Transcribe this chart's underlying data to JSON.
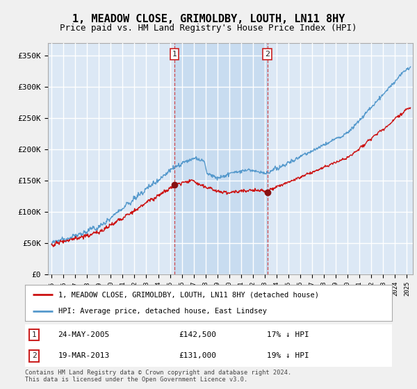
{
  "title": "1, MEADOW CLOSE, GRIMOLDBY, LOUTH, LN11 8HY",
  "subtitle": "Price paid vs. HM Land Registry's House Price Index (HPI)",
  "title_fontsize": 11,
  "subtitle_fontsize": 9,
  "ylim": [
    0,
    370000
  ],
  "yticks": [
    0,
    50000,
    100000,
    150000,
    200000,
    250000,
    300000,
    350000
  ],
  "ytick_labels": [
    "£0",
    "£50K",
    "£100K",
    "£150K",
    "£200K",
    "£250K",
    "£300K",
    "£350K"
  ],
  "xlim_start": 1994.7,
  "xlim_end": 2025.5,
  "xticks": [
    1995,
    1996,
    1997,
    1998,
    1999,
    2000,
    2001,
    2002,
    2003,
    2004,
    2005,
    2006,
    2007,
    2008,
    2009,
    2010,
    2011,
    2012,
    2013,
    2014,
    2015,
    2016,
    2017,
    2018,
    2019,
    2020,
    2021,
    2022,
    2023,
    2024,
    2025
  ],
  "outer_bg": "#f0f0f0",
  "plot_bg_color": "#dce8f5",
  "grid_color": "#ffffff",
  "hpi_color": "#5599cc",
  "price_color": "#cc1111",
  "shade_color": "#c8dcf0",
  "sale1_x": 2005.39,
  "sale1_y": 142500,
  "sale1_label": "1",
  "sale1_date": "24-MAY-2005",
  "sale1_price": "£142,500",
  "sale1_hpi": "17% ↓ HPI",
  "sale2_x": 2013.22,
  "sale2_y": 131000,
  "sale2_label": "2",
  "sale2_date": "19-MAR-2013",
  "sale2_price": "£131,000",
  "sale2_hpi": "19% ↓ HPI",
  "legend_label_price": "1, MEADOW CLOSE, GRIMOLDBY, LOUTH, LN11 8HY (detached house)",
  "legend_label_hpi": "HPI: Average price, detached house, East Lindsey",
  "footer": "Contains HM Land Registry data © Crown copyright and database right 2024.\nThis data is licensed under the Open Government Licence v3.0."
}
